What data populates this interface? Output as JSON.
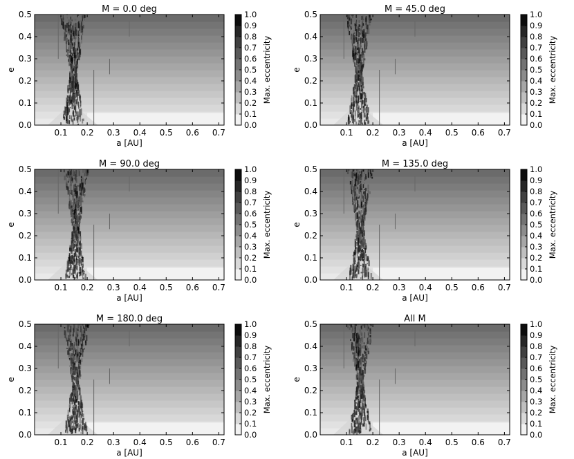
{
  "chart_data": [
    {
      "type": "heatmap",
      "title": "M = 0.0 deg",
      "xlabel": "a [AU]",
      "ylabel": "e",
      "colorbar_label": "Max. eccentricity",
      "xlim": [
        0.0,
        0.72
      ],
      "ylim": [
        0.0,
        0.5
      ],
      "clim": [
        0.0,
        1.0
      ],
      "colormap": "gray_r",
      "x_ticks": [
        "0.1",
        "0.2",
        "0.3",
        "0.4",
        "0.5",
        "0.6",
        "0.7"
      ],
      "y_ticks": [
        "0.0",
        "0.1",
        "0.2",
        "0.3",
        "0.4",
        "0.5"
      ],
      "colorbar_ticks": [
        "0.0",
        "0.1",
        "0.2",
        "0.3",
        "0.4",
        "0.5",
        "0.6",
        "0.7",
        "0.8",
        "0.9",
        "1.0"
      ]
    },
    {
      "type": "heatmap",
      "title": "M = 45.0 deg",
      "xlabel": "a [AU]",
      "ylabel": "e",
      "colorbar_label": "Max. eccentricity",
      "xlim": [
        0.0,
        0.72
      ],
      "ylim": [
        0.0,
        0.5
      ],
      "clim": [
        0.0,
        1.0
      ],
      "colormap": "gray_r",
      "x_ticks": [
        "0.1",
        "0.2",
        "0.3",
        "0.4",
        "0.5",
        "0.6",
        "0.7"
      ],
      "y_ticks": [
        "0.0",
        "0.1",
        "0.2",
        "0.3",
        "0.4",
        "0.5"
      ],
      "colorbar_ticks": [
        "0.0",
        "0.1",
        "0.2",
        "0.3",
        "0.4",
        "0.5",
        "0.6",
        "0.7",
        "0.8",
        "0.9",
        "1.0"
      ]
    },
    {
      "type": "heatmap",
      "title": "M = 90.0 deg",
      "xlabel": "a [AU]",
      "ylabel": "e",
      "colorbar_label": "Max. eccentricity",
      "xlim": [
        0.0,
        0.72
      ],
      "ylim": [
        0.0,
        0.5
      ],
      "clim": [
        0.0,
        1.0
      ],
      "colormap": "gray_r",
      "x_ticks": [
        "0.1",
        "0.2",
        "0.3",
        "0.4",
        "0.5",
        "0.6",
        "0.7"
      ],
      "y_ticks": [
        "0.0",
        "0.1",
        "0.2",
        "0.3",
        "0.4",
        "0.5"
      ],
      "colorbar_ticks": [
        "0.0",
        "0.1",
        "0.2",
        "0.3",
        "0.4",
        "0.5",
        "0.6",
        "0.7",
        "0.8",
        "0.9",
        "1.0"
      ]
    },
    {
      "type": "heatmap",
      "title": "M = 135.0 deg",
      "xlabel": "a [AU]",
      "ylabel": "e",
      "colorbar_label": "Max. eccentricity",
      "xlim": [
        0.0,
        0.72
      ],
      "ylim": [
        0.0,
        0.5
      ],
      "clim": [
        0.0,
        1.0
      ],
      "colormap": "gray_r",
      "x_ticks": [
        "0.1",
        "0.2",
        "0.3",
        "0.4",
        "0.5",
        "0.6",
        "0.7"
      ],
      "y_ticks": [
        "0.0",
        "0.1",
        "0.2",
        "0.3",
        "0.4",
        "0.5"
      ],
      "colorbar_ticks": [
        "0.0",
        "0.1",
        "0.2",
        "0.3",
        "0.4",
        "0.5",
        "0.6",
        "0.7",
        "0.8",
        "0.9",
        "1.0"
      ]
    },
    {
      "type": "heatmap",
      "title": "M = 180.0 deg",
      "xlabel": "a [AU]",
      "ylabel": "e",
      "colorbar_label": "Max. eccentricity",
      "xlim": [
        0.0,
        0.72
      ],
      "ylim": [
        0.0,
        0.5
      ],
      "clim": [
        0.0,
        1.0
      ],
      "colormap": "gray_r",
      "x_ticks": [
        "0.1",
        "0.2",
        "0.3",
        "0.4",
        "0.5",
        "0.6",
        "0.7"
      ],
      "y_ticks": [
        "0.0",
        "0.1",
        "0.2",
        "0.3",
        "0.4",
        "0.5"
      ],
      "colorbar_ticks": [
        "0.0",
        "0.1",
        "0.2",
        "0.3",
        "0.4",
        "0.5",
        "0.6",
        "0.7",
        "0.8",
        "0.9",
        "1.0"
      ]
    },
    {
      "type": "heatmap",
      "title": "All M",
      "xlabel": "a [AU]",
      "ylabel": "e",
      "colorbar_label": "Max. eccentricity",
      "xlim": [
        0.0,
        0.72
      ],
      "ylim": [
        0.0,
        0.5
      ],
      "clim": [
        0.0,
        1.0
      ],
      "colormap": "gray_r",
      "x_ticks": [
        "0.1",
        "0.2",
        "0.3",
        "0.4",
        "0.5",
        "0.6",
        "0.7"
      ],
      "y_ticks": [
        "0.0",
        "0.1",
        "0.2",
        "0.3",
        "0.4",
        "0.5"
      ],
      "colorbar_ticks": [
        "0.0",
        "0.1",
        "0.2",
        "0.3",
        "0.4",
        "0.5",
        "0.6",
        "0.7",
        "0.8",
        "0.9",
        "1.0"
      ]
    }
  ]
}
